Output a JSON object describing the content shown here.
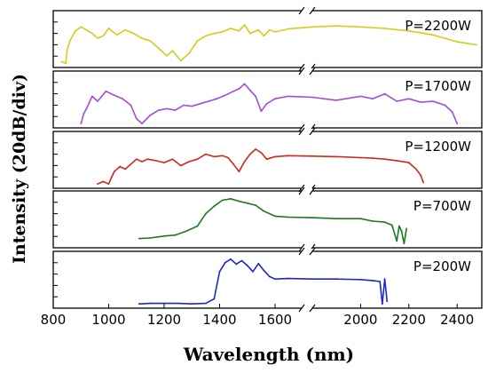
{
  "chart_data": {
    "type": "line",
    "ylabel": "Intensity (20dB/div)",
    "xlabel": "Wavelength (nm)",
    "xticks": [
      "800",
      "1000",
      "1200",
      "1400",
      "1600",
      "2000",
      "2200",
      "2400"
    ],
    "axis_break": "between 1600 and ~1800 nm",
    "grid": false,
    "series": [
      {
        "name": "P=2200W",
        "color": "#d4cc1c",
        "x": [
          830,
          845,
          850,
          860,
          880,
          900,
          920,
          940,
          960,
          980,
          1000,
          1030,
          1060,
          1090,
          1120,
          1150,
          1180,
          1210,
          1230,
          1260,
          1290,
          1320,
          1350,
          1380,
          1410,
          1440,
          1470,
          1490,
          1510,
          1540,
          1560,
          1580,
          1600,
          1700,
          1800,
          1900,
          2000,
          2100,
          2200,
          2300,
          2400,
          2480
        ],
        "y": [
          0.08,
          0.05,
          0.3,
          0.5,
          0.7,
          0.78,
          0.72,
          0.65,
          0.55,
          0.6,
          0.75,
          0.62,
          0.72,
          0.65,
          0.55,
          0.5,
          0.35,
          0.2,
          0.3,
          0.1,
          0.25,
          0.5,
          0.6,
          0.65,
          0.68,
          0.75,
          0.7,
          0.82,
          0.65,
          0.72,
          0.6,
          0.72,
          0.68,
          0.74,
          0.78,
          0.8,
          0.78,
          0.75,
          0.7,
          0.62,
          0.48,
          0.42
        ]
      },
      {
        "name": "P=1700W",
        "color": "#a64ad8",
        "x": [
          900,
          910,
          920,
          940,
          960,
          990,
          1020,
          1050,
          1080,
          1100,
          1120,
          1150,
          1180,
          1210,
          1240,
          1270,
          1300,
          1330,
          1360,
          1390,
          1420,
          1450,
          1470,
          1490,
          1510,
          1530,
          1550,
          1570,
          1600,
          1700,
          1800,
          1900,
          2000,
          2050,
          2100,
          2150,
          2200,
          2250,
          2300,
          2350,
          2380,
          2400
        ],
        "y": [
          0.05,
          0.25,
          0.35,
          0.6,
          0.5,
          0.7,
          0.62,
          0.55,
          0.42,
          0.15,
          0.05,
          0.22,
          0.32,
          0.35,
          0.32,
          0.42,
          0.4,
          0.45,
          0.5,
          0.55,
          0.62,
          0.7,
          0.75,
          0.85,
          0.72,
          0.6,
          0.3,
          0.45,
          0.55,
          0.6,
          0.58,
          0.52,
          0.6,
          0.55,
          0.65,
          0.5,
          0.55,
          0.48,
          0.5,
          0.42,
          0.28,
          0.05
        ]
      },
      {
        "name": "P=1200W",
        "color": "#cc2a1c",
        "x": [
          960,
          980,
          1000,
          1010,
          1020,
          1040,
          1060,
          1080,
          1100,
          1120,
          1140,
          1170,
          1200,
          1230,
          1260,
          1290,
          1320,
          1350,
          1380,
          1410,
          1430,
          1450,
          1470,
          1490,
          1510,
          1530,
          1550,
          1570,
          1600,
          1700,
          1800,
          1900,
          2000,
          2050,
          2100,
          2150,
          2200,
          2230,
          2250,
          2260
        ],
        "y": [
          0.05,
          0.1,
          0.05,
          0.18,
          0.3,
          0.4,
          0.35,
          0.45,
          0.55,
          0.5,
          0.55,
          0.52,
          0.48,
          0.55,
          0.42,
          0.5,
          0.55,
          0.65,
          0.6,
          0.62,
          0.58,
          0.45,
          0.3,
          0.5,
          0.65,
          0.75,
          0.68,
          0.55,
          0.6,
          0.62,
          0.61,
          0.6,
          0.58,
          0.57,
          0.55,
          0.52,
          0.48,
          0.35,
          0.22,
          0.08
        ]
      },
      {
        "name": "P=700W",
        "color": "#1c7a1c",
        "x": [
          1110,
          1150,
          1200,
          1240,
          1280,
          1320,
          1350,
          1380,
          1410,
          1440,
          1470,
          1500,
          1530,
          1560,
          1600,
          1700,
          1800,
          1900,
          2000,
          2050,
          2100,
          2130,
          2150,
          2160,
          2170,
          2180,
          2190
        ],
        "y": [
          0.15,
          0.16,
          0.2,
          0.22,
          0.3,
          0.4,
          0.65,
          0.8,
          0.92,
          0.95,
          0.9,
          0.86,
          0.82,
          0.7,
          0.6,
          0.58,
          0.57,
          0.55,
          0.55,
          0.5,
          0.48,
          0.42,
          0.1,
          0.4,
          0.3,
          0.05,
          0.35
        ]
      },
      {
        "name": "P=200W",
        "color": "#1c28cc",
        "x": [
          1110,
          1150,
          1200,
          1250,
          1300,
          1350,
          1380,
          1400,
          1420,
          1440,
          1460,
          1480,
          1500,
          1520,
          1540,
          1560,
          1580,
          1600,
          1700,
          1800,
          1900,
          2000,
          2050,
          2080,
          2090,
          2100,
          2110
        ],
        "y": [
          0.05,
          0.06,
          0.06,
          0.06,
          0.05,
          0.06,
          0.15,
          0.7,
          0.88,
          0.95,
          0.85,
          0.92,
          0.82,
          0.7,
          0.86,
          0.72,
          0.6,
          0.55,
          0.56,
          0.55,
          0.55,
          0.54,
          0.52,
          0.5,
          0.05,
          0.55,
          0.1
        ]
      }
    ]
  }
}
